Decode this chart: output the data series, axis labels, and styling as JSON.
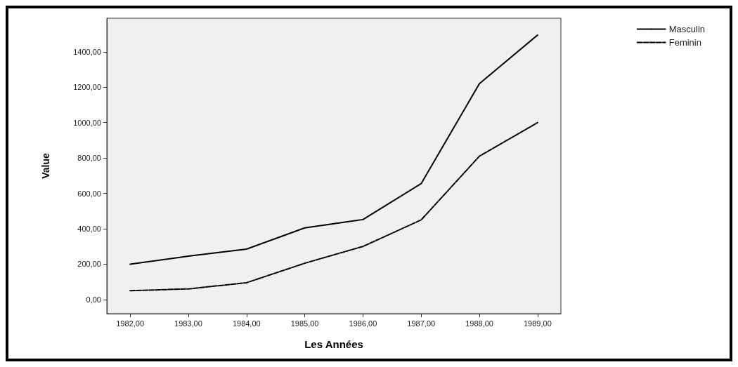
{
  "chart_data": {
    "type": "line",
    "xlabel": "Les Années",
    "ylabel": "Value",
    "x": [
      1982,
      1983,
      1984,
      1985,
      1986,
      1987,
      1988,
      1989
    ],
    "series": [
      {
        "name": "Masculin",
        "color": "#000000",
        "line_style": "solid",
        "values": [
          200,
          245,
          285,
          405,
          452,
          655,
          1220,
          1495
        ]
      },
      {
        "name": "Feminin",
        "color": "#000000",
        "line_style": "dashed",
        "values": [
          50,
          60,
          95,
          205,
          300,
          450,
          810,
          1000
        ]
      }
    ],
    "xlim": [
      1981.6,
      1989.4
    ],
    "xticks": [
      {
        "value": 1982,
        "label": "1982,00"
      },
      {
        "value": 1983,
        "label": "1983,00"
      },
      {
        "value": 1984,
        "label": "1984,00"
      },
      {
        "value": 1985,
        "label": "1985,00"
      },
      {
        "value": 1986,
        "label": "1986,00"
      },
      {
        "value": 1987,
        "label": "1987,00"
      },
      {
        "value": 1988,
        "label": "1988,00"
      },
      {
        "value": 1989,
        "label": "1989,00"
      }
    ],
    "ylim": [
      -80,
      1590
    ],
    "yticks": [
      {
        "value": 0,
        "label": "0,00"
      },
      {
        "value": 200,
        "label": "200,00"
      },
      {
        "value": 400,
        "label": "400,00"
      },
      {
        "value": 600,
        "label": "600,00"
      },
      {
        "value": 800,
        "label": "800,00"
      },
      {
        "value": 1000,
        "label": "1000,00"
      },
      {
        "value": 1200,
        "label": "1200,00"
      },
      {
        "value": 1400,
        "label": "1400,00"
      }
    ],
    "grid": false,
    "legend": "top right",
    "marker": "none"
  }
}
